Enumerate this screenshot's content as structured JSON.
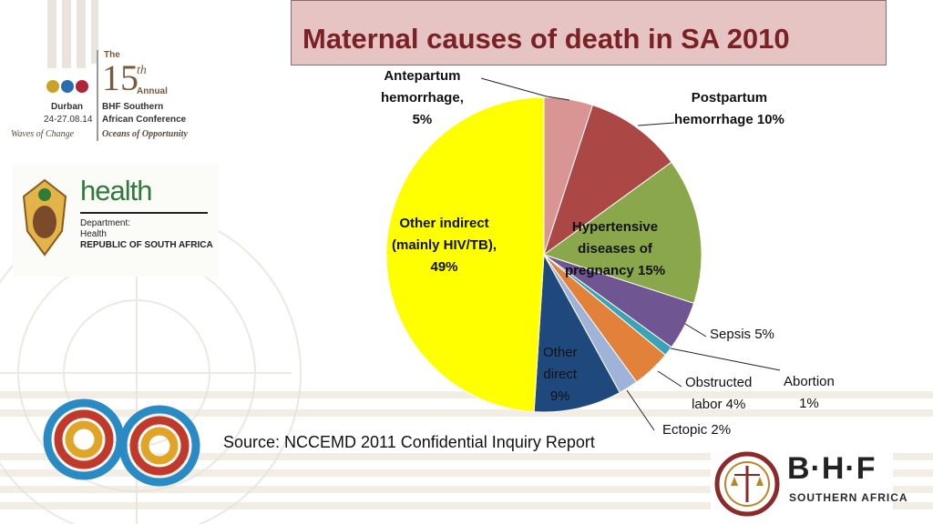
{
  "slide": {
    "title": "Maternal causes of death in SA 2010",
    "source": "Source: NCCEMD 2011 Confidential Inquiry Report"
  },
  "conference_logo": {
    "the": "The",
    "number": "15",
    "suffix": "th",
    "annual": "Annual",
    "city": "Durban",
    "dates": "24-27.08.14",
    "org_line1": "BHF Southern",
    "org_line2": "African Conference",
    "tagline_left": "Waves of Change",
    "tagline_right": "Oceans of Opportunity",
    "dot_colors": [
      "#c9a227",
      "#2b6cb0",
      "#b0243a"
    ]
  },
  "health_logo": {
    "word": "health",
    "line1": "Department:",
    "line2": "Health",
    "line3": "REPUBLIC OF SOUTH AFRICA"
  },
  "bhf_logo": {
    "letters": "B·H·F",
    "subtitle": "SOUTHERN AFRICA"
  },
  "chart_data": {
    "type": "pie",
    "title": "Maternal causes of death in SA 2010",
    "start_angle_deg": 0,
    "direction": "clockwise",
    "slices": [
      {
        "name": "Antepartum hemorrhage",
        "value": 5,
        "color": "#d99594"
      },
      {
        "name": "Postpartum hemorrhage",
        "value": 10,
        "color": "#ab4745"
      },
      {
        "name": "Hypertensive diseases of pregnancy",
        "value": 15,
        "color": "#8aa84b"
      },
      {
        "name": "Sepsis",
        "value": 5,
        "color": "#6f5592"
      },
      {
        "name": "Abortion",
        "value": 1,
        "color": "#3aa3b8"
      },
      {
        "name": "Obstructed labor",
        "value": 4,
        "color": "#e2823a"
      },
      {
        "name": "Ectopic",
        "value": 2,
        "color": "#9fb2d8"
      },
      {
        "name": "Other direct",
        "value": 9,
        "color": "#1f497d"
      },
      {
        "name": "Other indirect (mainly HIV/TB)",
        "value": 49,
        "color": "#ffff00"
      }
    ],
    "labels": {
      "antepartum": [
        "Antepartum",
        "hemorrhage,",
        "5%"
      ],
      "postpartum": [
        "Postpartum",
        "hemorrhage 10%"
      ],
      "hypertensive": [
        "Hypertensive",
        "diseases of",
        "pregnancy 15%"
      ],
      "sepsis": "Sepsis 5%",
      "abortion": [
        "Abortion",
        "1%"
      ],
      "obstructed": [
        "Obstructed",
        "labor 4%"
      ],
      "ectopic": "Ectopic 2%",
      "other_direct": [
        "Other",
        "direct",
        "9%"
      ],
      "other_indirect": [
        "Other indirect",
        "(mainly HIV/TB),",
        "49%"
      ]
    }
  }
}
